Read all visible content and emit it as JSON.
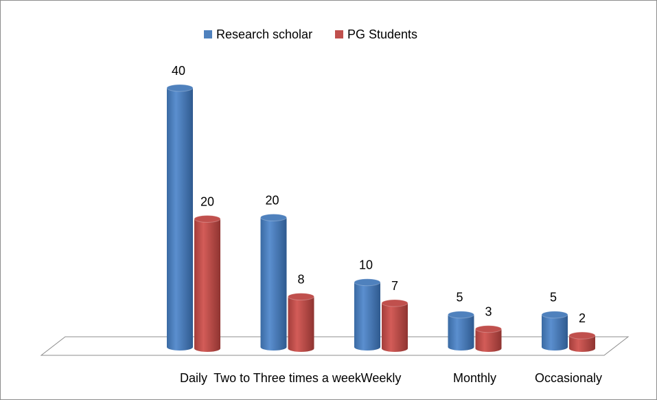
{
  "chart_data": {
    "type": "bar3d",
    "categories": [
      "Daily",
      "Two to Three times a week",
      "Weekly",
      "Monthly",
      "Occasionaly"
    ],
    "series": [
      {
        "name": "Research scholar",
        "color": "#4f81bd",
        "values": [
          40,
          20,
          10,
          5,
          5
        ]
      },
      {
        "name": "PG Students",
        "color": "#c0504d",
        "values": [
          20,
          8,
          7,
          3,
          2
        ]
      }
    ],
    "legend": "top"
  }
}
